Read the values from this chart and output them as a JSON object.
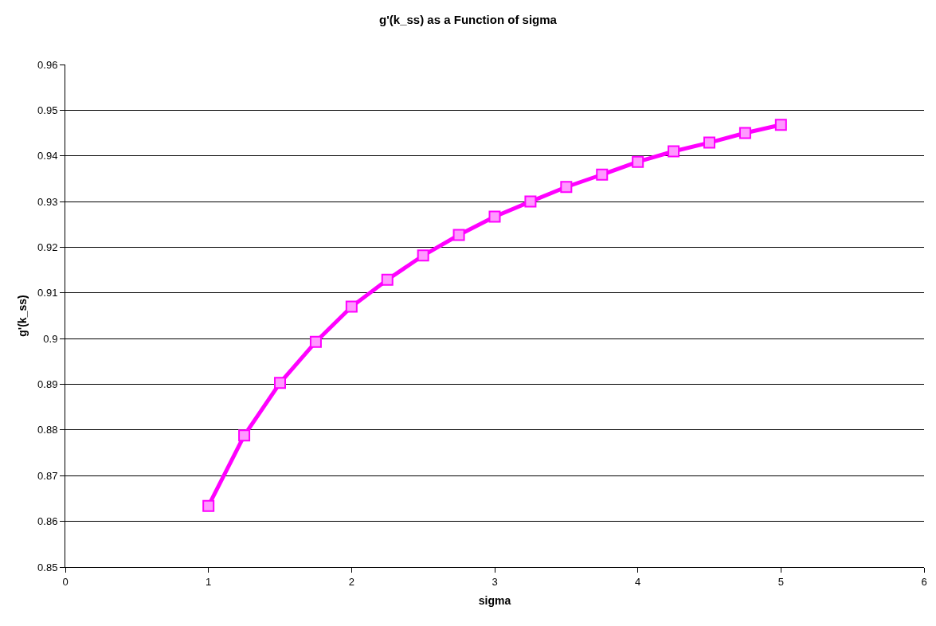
{
  "chart_data": {
    "type": "line",
    "title": "g'(k_ss) as a Function of sigma",
    "xlabel": "sigma",
    "ylabel": "g'(k_ss)",
    "x": [
      1,
      1.25,
      1.5,
      1.75,
      2,
      2.25,
      2.5,
      2.75,
      3,
      3.25,
      3.5,
      3.75,
      4,
      4.25,
      4.5,
      4.75,
      5
    ],
    "series": [
      {
        "color": "#ff00ff",
        "values": [
          0.8634,
          0.8788,
          0.8903,
          0.8993,
          0.907,
          0.9129,
          0.9182,
          0.9227,
          0.9267,
          0.93,
          0.9332,
          0.9359,
          0.9387,
          0.941,
          0.9429,
          0.945,
          0.9468
        ]
      }
    ],
    "xlim": [
      0,
      6
    ],
    "xticks": [
      0,
      1,
      2,
      3,
      4,
      5,
      6
    ],
    "ylim": [
      0.85,
      0.96
    ],
    "yticks": [
      0.85,
      0.86,
      0.87,
      0.88,
      0.89,
      0.9,
      0.91,
      0.92,
      0.93,
      0.94,
      0.95,
      0.96
    ],
    "grid": "y",
    "marker": "square",
    "line_style": "solid"
  }
}
